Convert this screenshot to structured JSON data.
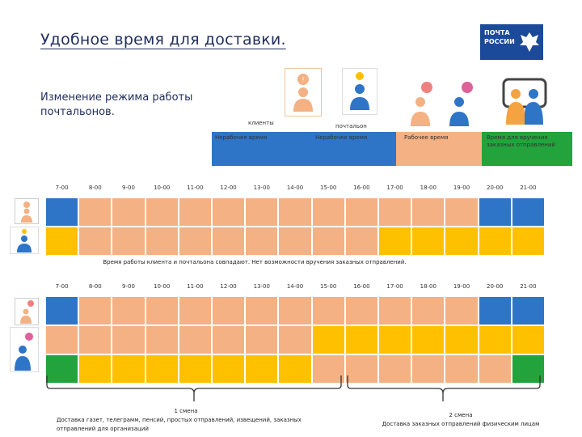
{
  "title": "Удобное время для доставки.",
  "subtitle": "Изменение режима работы почтальонов.",
  "logo": {
    "line1": "ПОЧТА",
    "line2": "РОССИИ"
  },
  "labels": {
    "clients": "клиенты",
    "postman": "почтальон"
  },
  "legend": [
    {
      "text": "Нерабочее время",
      "color": "#2e75c8"
    },
    {
      "text": "Нерабочее время",
      "color": "#2e75c8"
    },
    {
      "text": "Рабочее время",
      "color": "#f4b183"
    },
    {
      "text": "Время для вручения заказных отправлений",
      "color": "#23a33c"
    }
  ],
  "hours": [
    "7-00",
    "8-00",
    "9-00",
    "10-00",
    "11-00",
    "12-00",
    "13-00",
    "14-00",
    "15-00",
    "16-00",
    "17-00",
    "18-00",
    "19-00",
    "20-00",
    "21-00"
  ],
  "colors": {
    "blue": "#2e75c8",
    "peach": "#f4b183",
    "yellow": "#ffc000",
    "green": "#23a33c"
  },
  "table1": {
    "rows": [
      [
        "blue",
        "peach",
        "peach",
        "peach",
        "peach",
        "peach",
        "peach",
        "peach",
        "peach",
        "peach",
        "peach",
        "peach",
        "peach",
        "blue",
        "blue"
      ],
      [
        "yellow",
        "peach",
        "peach",
        "peach",
        "peach",
        "peach",
        "peach",
        "peach",
        "peach",
        "peach",
        "yellow",
        "yellow",
        "yellow",
        "yellow",
        "yellow"
      ]
    ],
    "note": "Время работы клиента и почтальона совпадают. Нет возможности вручения заказных отправлений."
  },
  "table2": {
    "rows": [
      [
        "blue",
        "peach",
        "peach",
        "peach",
        "peach",
        "peach",
        "peach",
        "peach",
        "peach",
        "peach",
        "peach",
        "peach",
        "peach",
        "blue",
        "blue"
      ],
      [
        "peach",
        "peach",
        "peach",
        "peach",
        "peach",
        "peach",
        "peach",
        "peach",
        "yellow",
        "yellow",
        "yellow",
        "yellow",
        "yellow",
        "yellow",
        "yellow"
      ],
      [
        "green",
        "yellow",
        "yellow",
        "yellow",
        "yellow",
        "yellow",
        "yellow",
        "yellow",
        "peach",
        "peach",
        "peach",
        "peach",
        "peach",
        "peach",
        "green"
      ]
    ]
  },
  "shift1": {
    "title": "1 смена",
    "text": "Доставка газет, телеграмм, пенсий, простых отправлений, извещений, заказных отправлений для организаций"
  },
  "shift2": {
    "title": "2 смена",
    "text": "Доставка заказных отправлений физическим лицам"
  }
}
